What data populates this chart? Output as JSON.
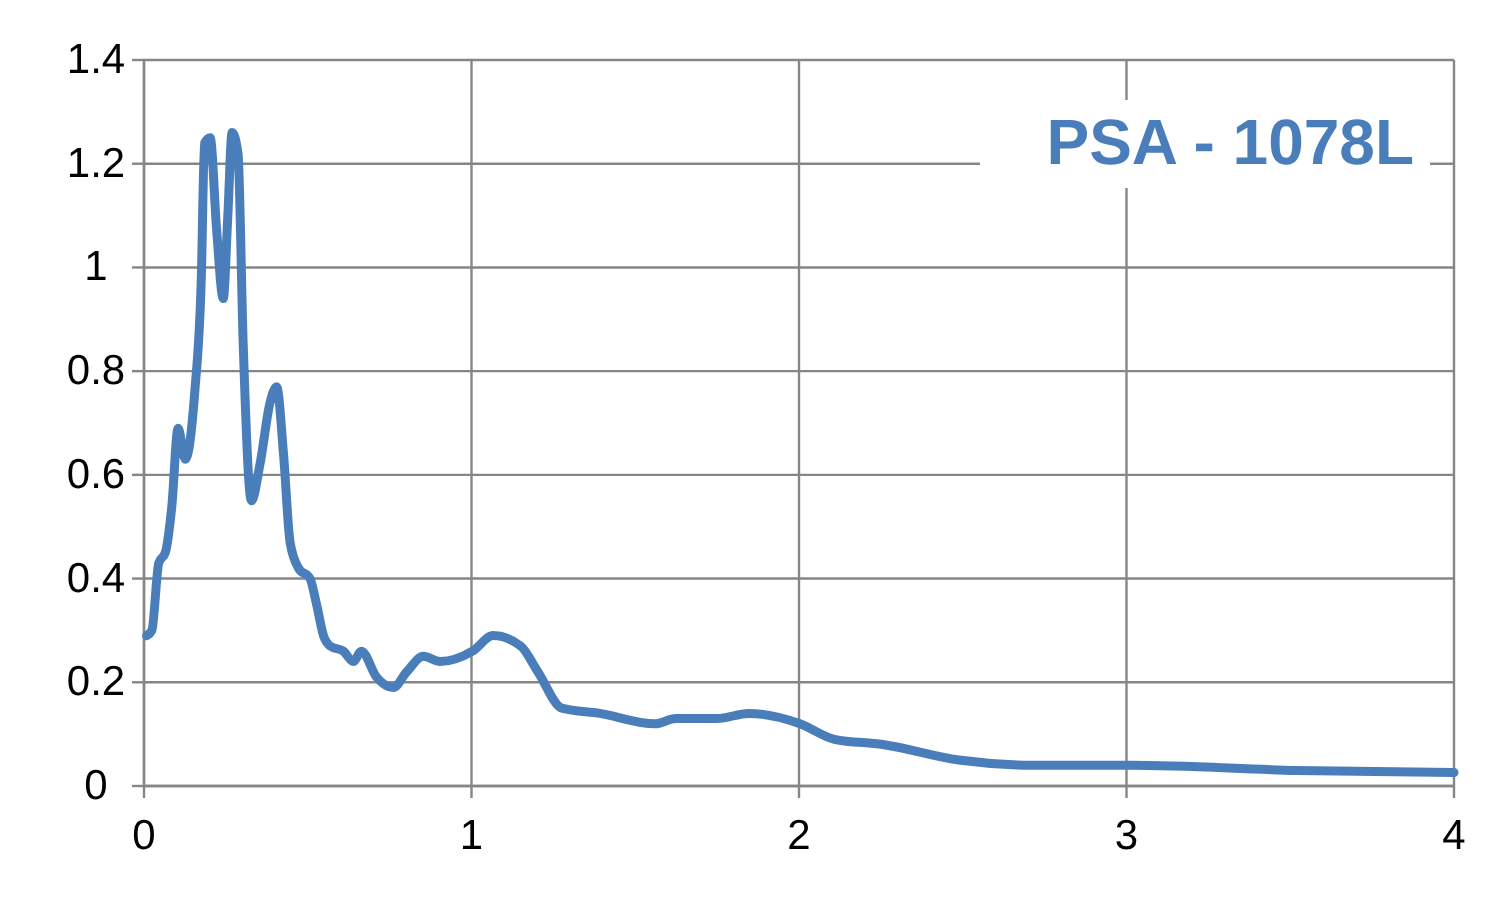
{
  "chart_data": {
    "type": "line",
    "title": "PSA - 1078L",
    "xlim": [
      0,
      4
    ],
    "xticks": [
      0,
      1,
      2,
      3,
      4
    ],
    "ylim": [
      0,
      1.4
    ],
    "yticks": [
      0,
      0.2,
      0.4,
      0.6,
      0.8,
      1,
      1.2,
      1.4
    ],
    "grid": true,
    "series": [
      {
        "color": "#4a7ebb",
        "x": [
          0.008,
          0.024,
          0.045,
          0.065,
          0.085,
          0.104,
          0.126,
          0.155,
          0.175,
          0.185,
          0.202,
          0.222,
          0.242,
          0.256,
          0.269,
          0.287,
          0.303,
          0.328,
          0.354,
          0.385,
          0.405,
          0.426,
          0.446,
          0.472,
          0.507,
          0.527,
          0.548,
          0.568,
          0.609,
          0.639,
          0.664,
          0.71,
          0.761,
          0.802,
          0.853,
          0.904,
          1.003,
          1.066,
          1.15,
          1.203,
          1.276,
          1.392,
          1.56,
          1.624,
          1.75,
          1.845,
          2.003,
          2.108,
          2.256,
          2.488,
          2.72,
          3.014,
          3.52,
          4.0
        ],
        "values": [
          0.29,
          0.3,
          0.43,
          0.45,
          0.54,
          0.69,
          0.63,
          0.76,
          0.98,
          1.24,
          1.25,
          1.07,
          0.94,
          1.1,
          1.26,
          1.22,
          0.85,
          0.55,
          0.62,
          0.74,
          0.77,
          0.64,
          0.47,
          0.42,
          0.4,
          0.35,
          0.29,
          0.27,
          0.26,
          0.24,
          0.26,
          0.21,
          0.19,
          0.22,
          0.25,
          0.24,
          0.26,
          0.29,
          0.27,
          0.22,
          0.15,
          0.14,
          0.12,
          0.13,
          0.13,
          0.14,
          0.12,
          0.09,
          0.08,
          0.05,
          0.04,
          0.04,
          0.03,
          0.026
        ]
      }
    ]
  }
}
